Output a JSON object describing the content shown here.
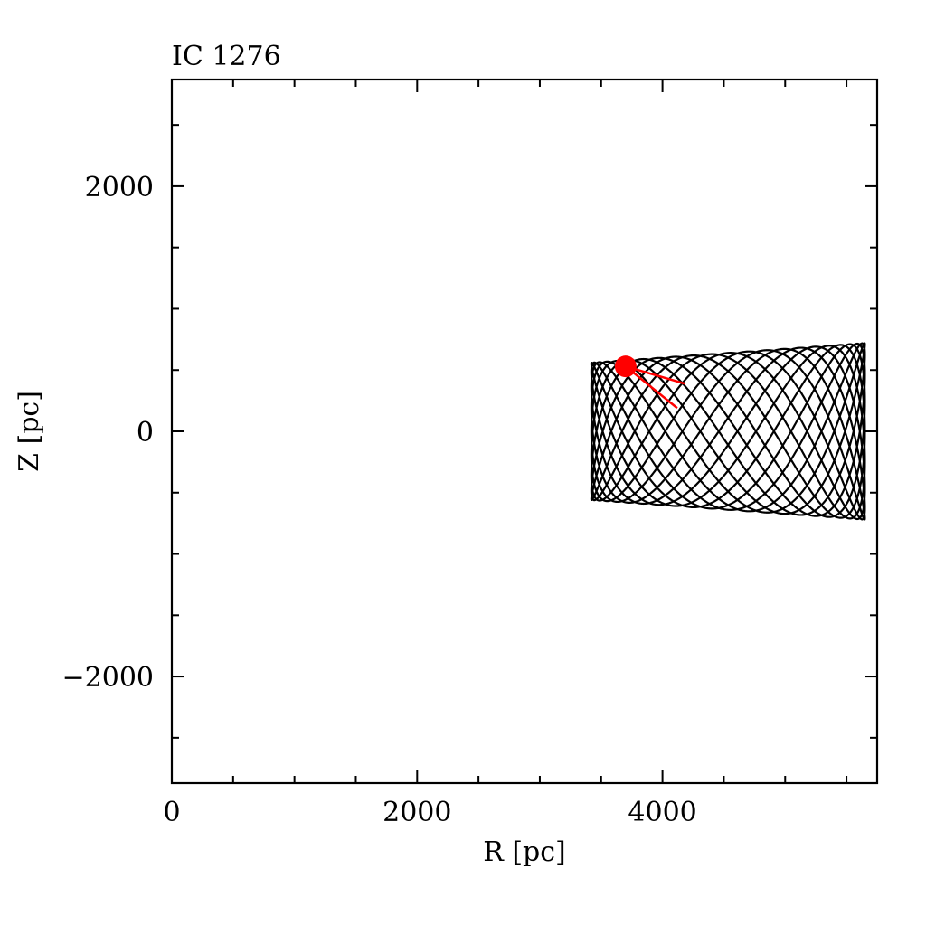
{
  "chart_data": {
    "type": "line",
    "title": "IC 1276",
    "xlabel": "R [pc]",
    "ylabel": "Z [pc]",
    "xlim": [
      0,
      5750
    ],
    "ylim": [
      -2870,
      2870
    ],
    "x_ticks_major": [
      0,
      2000,
      4000
    ],
    "x_tick_labels": [
      "0",
      "2000",
      "4000"
    ],
    "x_ticks_minor": [
      500,
      1000,
      1500,
      2500,
      3000,
      3500,
      4500,
      5000,
      5500
    ],
    "y_ticks_major": [
      -2000,
      0,
      2000
    ],
    "y_tick_labels": [
      "−2000",
      "0",
      "2000"
    ],
    "y_ticks_minor": [
      -2500,
      -1500,
      -1000,
      -500,
      500,
      1000,
      1500,
      2500
    ],
    "grid": false,
    "orbit": {
      "color": "#000000",
      "r_min": 3420,
      "r_max": 5650,
      "z_max_at_r_min": 560,
      "z_max_at_r_max": 720,
      "r_cycles": 9,
      "z_cycles": 23
    },
    "current_position": {
      "r": 3700,
      "z": 530,
      "color": "#ff0000"
    },
    "velocity_vectors": [
      {
        "dr": 480,
        "dz": -140
      },
      {
        "dr": 420,
        "dz": -340
      }
    ]
  }
}
